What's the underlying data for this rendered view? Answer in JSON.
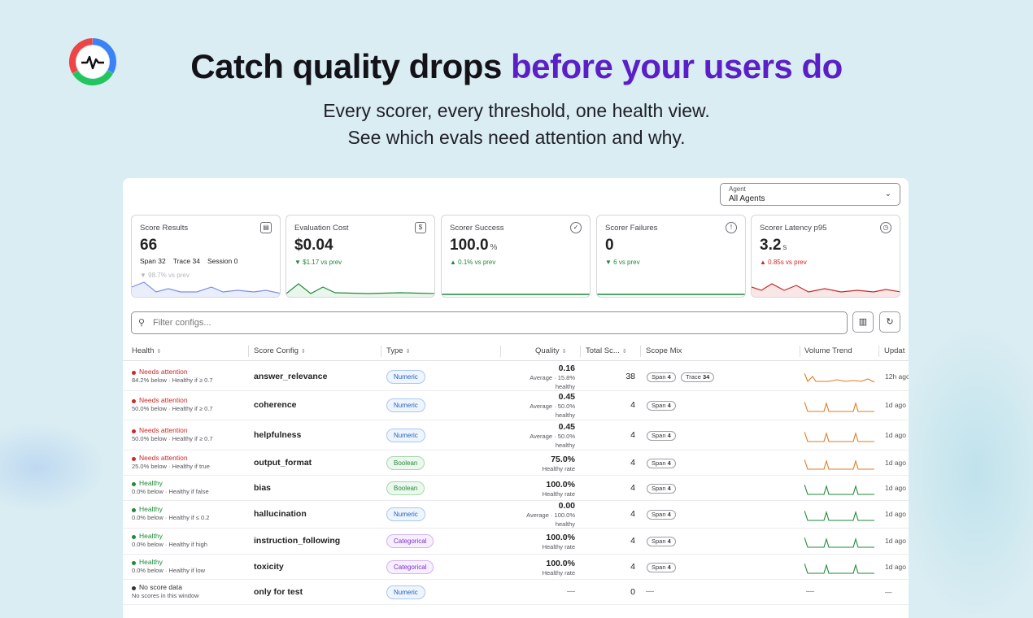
{
  "hero": {
    "title_main": "Catch quality drops",
    "title_highlight": "before your users do",
    "subtitle_line1": "Every scorer, every threshold, one health view.",
    "subtitle_line2": "See which evals need attention and why."
  },
  "agent_select": {
    "label": "Agent",
    "value": "All Agents"
  },
  "cards": [
    {
      "title": "Score Results",
      "value": "66",
      "unit": "",
      "delta": "98.7% vs prev",
      "meta": [
        {
          "k": "Span",
          "v": "32"
        },
        {
          "k": "Trace",
          "v": "34"
        },
        {
          "k": "Session",
          "v": "0"
        }
      ]
    },
    {
      "title": "Evaluation Cost",
      "value": "$0.04",
      "unit": "",
      "delta": "▼ $1.17 vs prev"
    },
    {
      "title": "Scorer Success",
      "value": "100.0",
      "unit": "%",
      "delta": "▲ 0.1% vs prev"
    },
    {
      "title": "Scorer Failures",
      "value": "0",
      "unit": "",
      "delta": "▼ 6 vs prev"
    },
    {
      "title": "Scorer Latency p95",
      "value": "3.2",
      "unit": "s",
      "delta": "▲ 0.85s vs prev"
    }
  ],
  "filter": {
    "placeholder": "Filter configs..."
  },
  "columns": {
    "health": "Health",
    "config": "Score Config",
    "type": "Type",
    "quality": "Quality",
    "total": "Total Sc...",
    "scope": "Scope Mix",
    "trend": "Volume Trend",
    "updated": "Updat"
  },
  "colors": {
    "accent": "#5b1fc7",
    "attention": "#c92a2a",
    "healthy": "#1e8a3a",
    "nodata": "#333333"
  },
  "rows": [
    {
      "status": "Needs attention",
      "detail": "84.2% below · Healthy if ≥ 0.7",
      "config": "answer_relevance",
      "type": "Numeric",
      "quality": "0.16",
      "q2": "Average · 15.8%",
      "q3": "healthy",
      "total": "38",
      "span": "4",
      "trace": "34",
      "updated": "12h ago"
    },
    {
      "status": "Needs attention",
      "detail": "50.0% below · Healthy if ≥ 0.7",
      "config": "coherence",
      "type": "Numeric",
      "quality": "0.45",
      "q2": "Average · 50.0%",
      "q3": "healthy",
      "total": "4",
      "span": "4",
      "updated": "1d ago"
    },
    {
      "status": "Needs attention",
      "detail": "50.0% below · Healthy if ≥ 0.7",
      "config": "helpfulness",
      "type": "Numeric",
      "quality": "0.45",
      "q2": "Average · 50.0%",
      "q3": "healthy",
      "total": "4",
      "span": "4",
      "updated": "1d ago"
    },
    {
      "status": "Needs attention",
      "detail": "25.0% below · Healthy if true",
      "config": "output_format",
      "type": "Boolean",
      "quality": "75.0%",
      "q2": "Healthy rate",
      "total": "4",
      "span": "4",
      "updated": "1d ago"
    },
    {
      "status": "Healthy",
      "detail": "0.0% below · Healthy if false",
      "config": "bias",
      "type": "Boolean",
      "quality": "100.0%",
      "q2": "Healthy rate",
      "total": "4",
      "span": "4",
      "updated": "1d ago"
    },
    {
      "status": "Healthy",
      "detail": "0.0% below · Healthy if ≤ 0.2",
      "config": "hallucination",
      "type": "Numeric",
      "quality": "0.00",
      "q2": "Average · 100.0%",
      "q3": "healthy",
      "total": "4",
      "span": "4",
      "updated": "1d ago"
    },
    {
      "status": "Healthy",
      "detail": "0.0% below · Healthy if high",
      "config": "instruction_following",
      "type": "Categorical",
      "quality": "100.0%",
      "q2": "Healthy rate",
      "total": "4",
      "span": "4",
      "updated": "1d ago"
    },
    {
      "status": "Healthy",
      "detail": "0.0% below · Healthy if low",
      "config": "toxicity",
      "type": "Categorical",
      "quality": "100.0%",
      "q2": "Healthy rate",
      "total": "4",
      "span": "4",
      "updated": "1d ago"
    },
    {
      "status": "No score data",
      "detail": "No scores in this window",
      "config": "only for test",
      "type": "Numeric",
      "quality": "—",
      "total": "0",
      "scope": "—",
      "trend": "—",
      "updated": "—"
    }
  ]
}
